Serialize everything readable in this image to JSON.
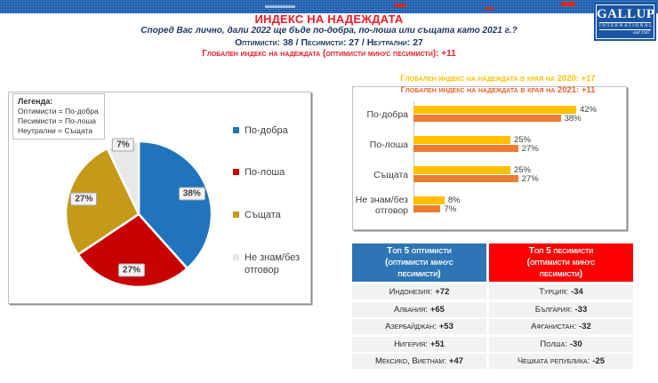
{
  "logo": {
    "name": "GALLUP",
    "sub": "INTERNATIONAL",
    "est": "estd 1947"
  },
  "header": {
    "title": "ИНДЕКС НА НАДЕЖДАТА",
    "subtitle": "Според Вас лично, дали 2022 ще бъде по-добра, по-лоша или същата като 2021 г.?",
    "stats": "Оптимисти: 38 / Песимисти: 27 / Неутрални: 27",
    "global_index": "Глобален индекс на надеждата (оптимисти минус песимисти): +11"
  },
  "legend_box": {
    "title": "Легенда:",
    "lines": [
      "Оптимисти = По-добра",
      "Песимисти = По-лоша",
      "Неутрални = Същата"
    ]
  },
  "chart_data": [
    {
      "type": "pie",
      "labels": [
        "По-добра",
        "По-лоша",
        "Същата",
        "Не знам/без отговор"
      ],
      "values": [
        38,
        27,
        27,
        7
      ],
      "data_labels": [
        "38%",
        "27%",
        "27%",
        "7%"
      ],
      "colors": [
        "#1F74BD",
        "#C80000",
        "#C49A18",
        "#E8E8E8"
      ],
      "legend_position": "right",
      "start_angle_deg": 0,
      "direction": "clockwise"
    },
    {
      "type": "bar",
      "orientation": "horizontal",
      "categories": [
        "По-добра",
        "По-лоша",
        "Същата",
        "Не знам/без отговор"
      ],
      "series": [
        {
          "name": "2020",
          "values": [
            42,
            25,
            25,
            8
          ],
          "color": "#FFC000"
        },
        {
          "name": "2021",
          "values": [
            38,
            27,
            27,
            7
          ],
          "color": "#ED7D31"
        }
      ],
      "value_suffix": "%",
      "xlim": [
        0,
        55
      ],
      "grid": false,
      "annotations": [
        {
          "text": "Глобален индекс на надеждата в края на 2020: +17",
          "color": "#FFC000"
        },
        {
          "text": "Глобален индекс на надеждата в края на 2021: +11",
          "color": "#E8632C"
        }
      ]
    }
  ],
  "tables": {
    "optimists": {
      "header": {
        "line1": "Топ 5 оптимисти",
        "line2_pre": "(оптимисти ",
        "line2_italic": "минус",
        "line3": "песимисти)",
        "color": "#2E75B6"
      },
      "rows": [
        {
          "label": "Индонезия:",
          "value": "+72"
        },
        {
          "label": "Албания:",
          "value": "+65"
        },
        {
          "label": "Азербайджан:",
          "value": "+53"
        },
        {
          "label": "Нигерия:",
          "value": "+51"
        },
        {
          "label": "Мексико, Виетнам:",
          "value": "+47"
        }
      ]
    },
    "pessimists": {
      "header": {
        "line1": "Топ 5 песимисти",
        "line2_pre": "(оптимисти ",
        "line2_italic": "минус",
        "line3": "песимисти)",
        "color": "#FF0000"
      },
      "rows": [
        {
          "label": "Турция:",
          "value": "-34"
        },
        {
          "label": "България:",
          "value": "-33"
        },
        {
          "label": "Афганистан:",
          "value": "-32"
        },
        {
          "label": "Полша:",
          "value": "-30"
        },
        {
          "label": "Чешката република:",
          "value": "-25"
        }
      ]
    }
  }
}
